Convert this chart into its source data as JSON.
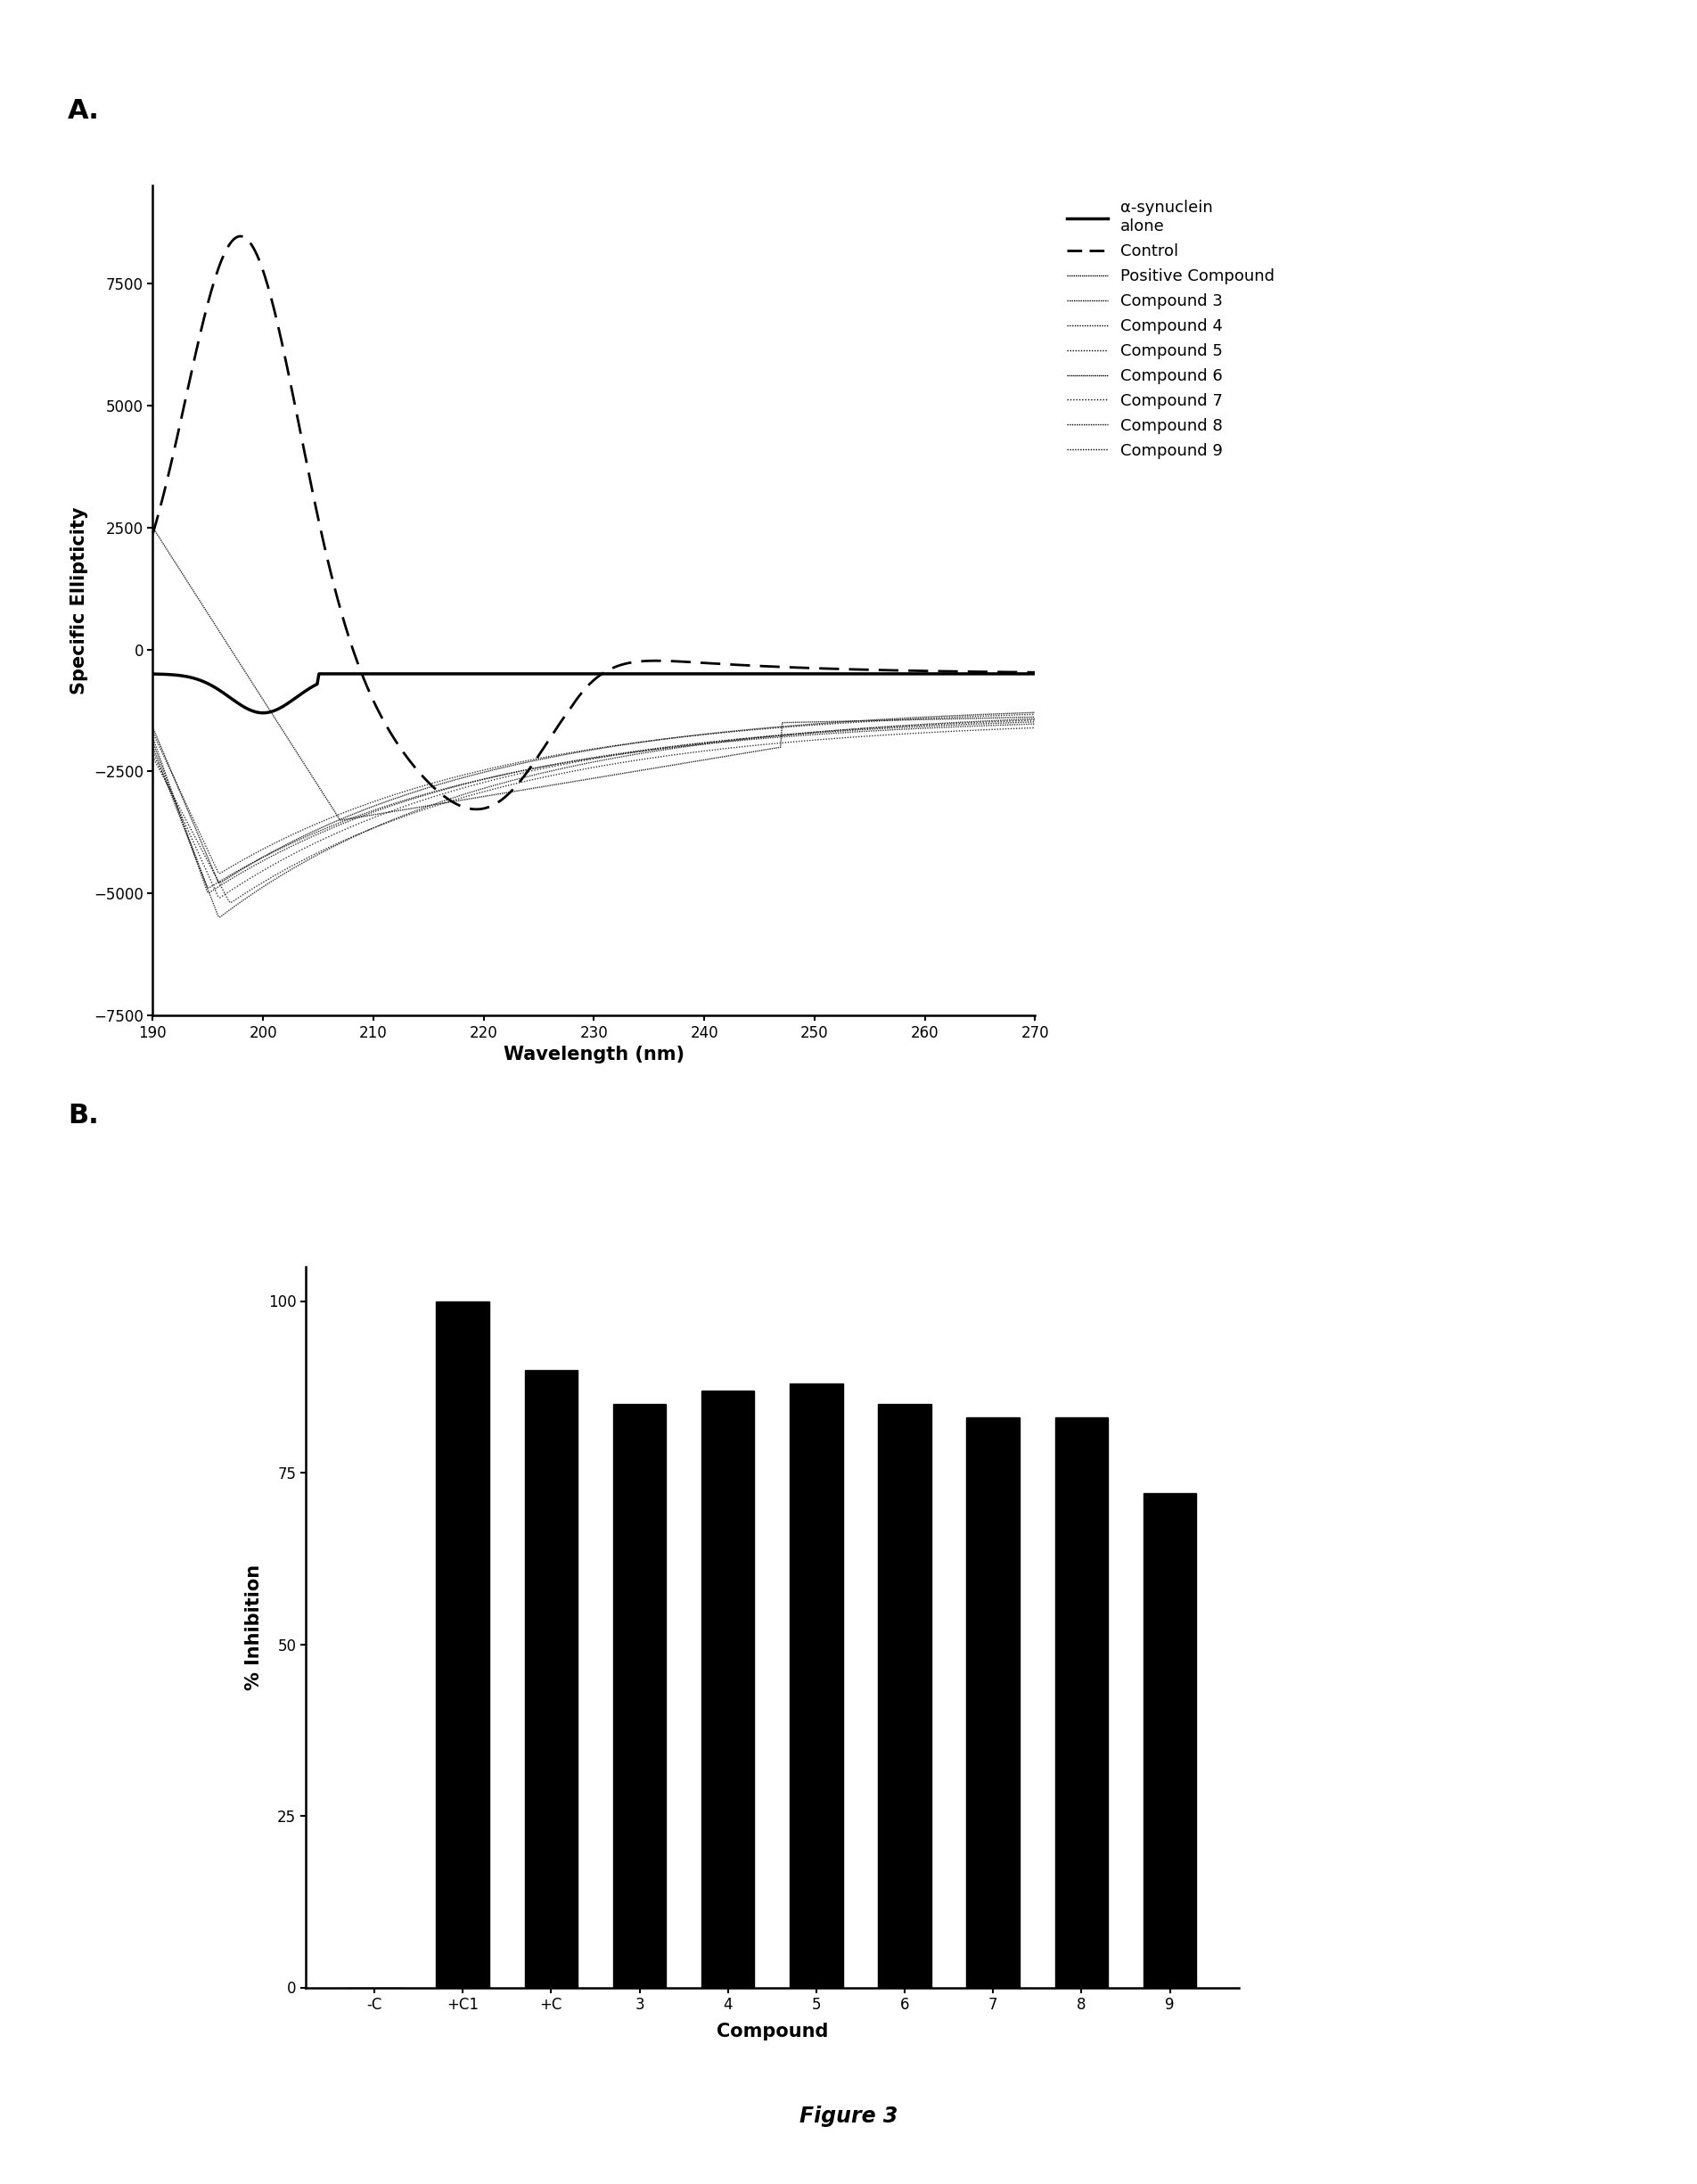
{
  "panel_a": {
    "xlabel": "Wavelength (nm)",
    "ylabel": "Specific Ellipticity",
    "xlim": [
      190,
      270
    ],
    "ylim": [
      -7500,
      9500
    ],
    "yticks": [
      -7500,
      -5000,
      -2500,
      0,
      2500,
      5000,
      7500
    ],
    "xticks": [
      190,
      200,
      210,
      220,
      230,
      240,
      250,
      260,
      270
    ],
    "legend_entries": [
      "α-synuclein\nalone",
      "Control",
      "Positive Compound",
      "Compound 3",
      "Compound 4",
      "Compound 5",
      "Compound 6",
      "Compound 7",
      "Compound 8",
      "Compound 9"
    ]
  },
  "panel_b": {
    "categories": [
      "-C",
      "+C1",
      "+C",
      "3",
      "4",
      "5",
      "6",
      "7",
      "8",
      "9"
    ],
    "values": [
      0,
      100,
      90,
      85,
      87,
      88,
      85,
      83,
      83,
      72
    ],
    "xlabel": "Compound",
    "ylabel": "% Inhibition",
    "ylim": [
      0,
      105
    ],
    "yticks": [
      0,
      25,
      50,
      75,
      100
    ],
    "bar_color": "#000000",
    "bar_width": 0.6
  },
  "figure_label": "Figure 3",
  "background_color": "#ffffff",
  "label_a": "A.",
  "label_b": "B."
}
